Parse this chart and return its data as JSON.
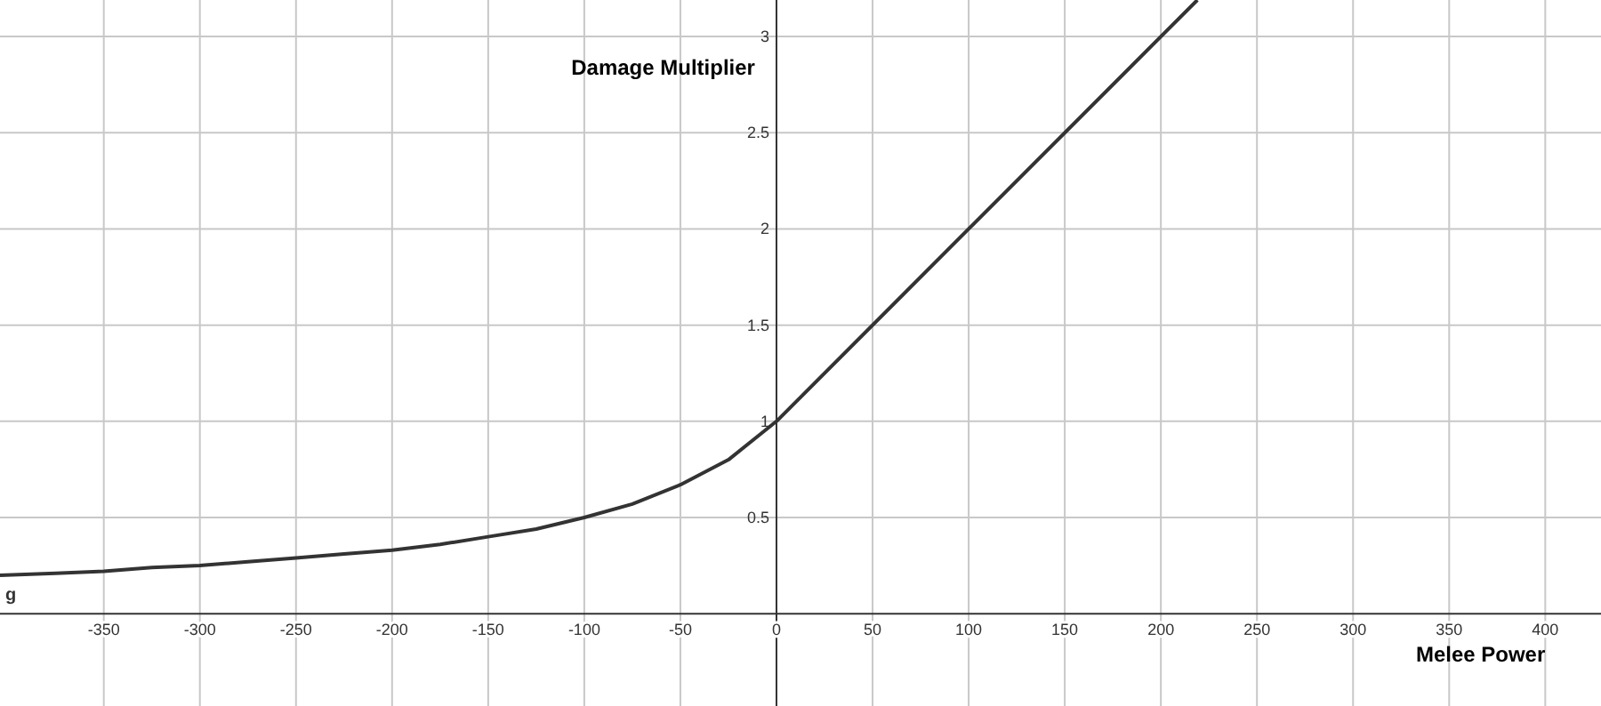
{
  "chart_data": {
    "type": "line",
    "xlabel": "Melee Power",
    "ylabel": "Damage Multiplier",
    "xlim": [
      -404,
      429
    ],
    "ylim": [
      -0.48,
      3.19
    ],
    "xticks": [
      -350,
      -300,
      -250,
      -200,
      -150,
      -100,
      -50,
      0,
      50,
      100,
      150,
      200,
      250,
      300,
      350,
      400
    ],
    "yticks": [
      0.5,
      1,
      1.5,
      2,
      2.5,
      3
    ],
    "grid": true,
    "series": [
      {
        "name": "g",
        "color": "#333333",
        "x": [
          -404,
          -375,
          -350,
          -325,
          -300,
          -275,
          -250,
          -225,
          -200,
          -175,
          -150,
          -125,
          -100,
          -75,
          -50,
          -25,
          0,
          100,
          200,
          219
        ],
        "values": [
          0.2,
          0.21,
          0.22,
          0.24,
          0.25,
          0.27,
          0.29,
          0.31,
          0.33,
          0.36,
          0.4,
          0.44,
          0.5,
          0.57,
          0.67,
          0.8,
          1,
          2,
          3,
          3.19
        ]
      }
    ]
  }
}
